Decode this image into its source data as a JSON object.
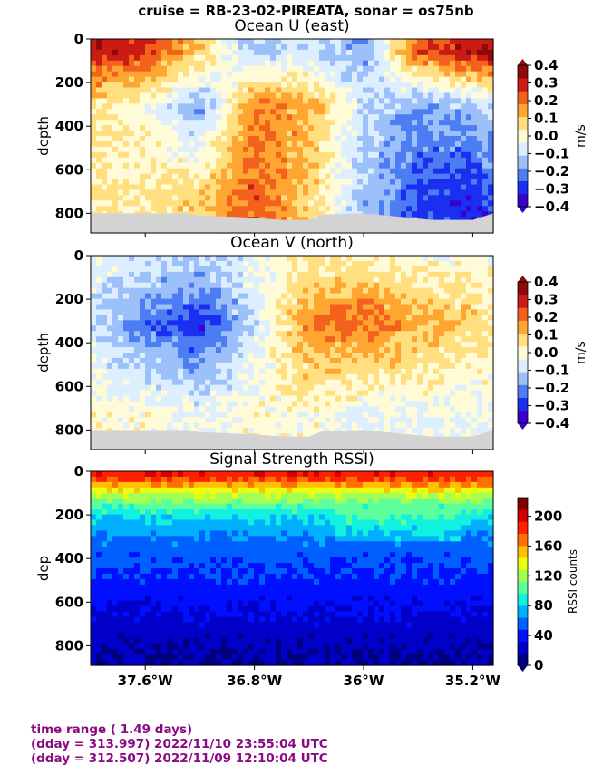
{
  "suptitle": "cruise = RB-23-02-PIREATA,  sonar = os75nb",
  "footer": {
    "line1": "time range ( 1.49 days)",
    "line2": "(dday = 313.997) 2022/11/10 23:55:04 UTC",
    "line3": "(dday = 312.507) 2022/11/09 12:10:04 UTC"
  },
  "colors": {
    "no_data_gray": "#d3d3d3",
    "footer_purple": "#8a0a84",
    "u_v_palette": [
      "#3a00cc",
      "#1b2ff0",
      "#4c7df2",
      "#9cc0fa",
      "#ddefff",
      "#fffbd6",
      "#ffdf80",
      "#ffa632",
      "#f2621c",
      "#cc1a14",
      "#8c0a0a"
    ],
    "rssi_palette": [
      "#00007f",
      "#0000c8",
      "#0010ff",
      "#0060ff",
      "#00b0ff",
      "#12f0e0",
      "#5cff9a",
      "#a4ff52",
      "#eaff10",
      "#ffc000",
      "#ff7000",
      "#ff2000",
      "#d00000",
      "#800000"
    ]
  },
  "chart_data": [
    {
      "type": "heatmap",
      "title": "Ocean U (east)",
      "xlabel": "",
      "ylabel": "depth",
      "x_tick_labels": [
        "37.6°W",
        "36.8°W",
        "36°W",
        "35.2°W"
      ],
      "x_ticks": [
        -37.6,
        -36.8,
        -36.0,
        -35.2
      ],
      "xlim": [
        -38.0,
        -35.05
      ],
      "y_tick_labels": [
        "0",
        "200",
        "400",
        "600",
        "800"
      ],
      "y_ticks": [
        0,
        200,
        400,
        600,
        800
      ],
      "ylim": [
        890,
        0
      ],
      "colorbar": {
        "label": "m/s",
        "tick_labels": [
          "0.4",
          "0.3",
          "0.2",
          "0.1",
          "0.0",
          "−0.1",
          "−0.2",
          "−0.3",
          "−0.4"
        ],
        "ticks": [
          0.4,
          0.3,
          0.2,
          0.1,
          0.0,
          -0.1,
          -0.2,
          -0.3,
          -0.4
        ],
        "range": [
          -0.4,
          0.4
        ],
        "levels": 11,
        "extend": "both"
      },
      "field_summary": {
        "longitudes": [
          -38.0,
          -37.6,
          -37.2,
          -36.8,
          -36.4,
          -36.0,
          -35.6,
          -35.2,
          -35.05
        ],
        "surface_0_100m": [
          0.35,
          0.3,
          0.1,
          -0.15,
          -0.1,
          -0.2,
          0.25,
          0.35,
          0.4
        ],
        "mid_200_500m": [
          0.05,
          0.0,
          -0.2,
          0.2,
          0.15,
          -0.1,
          -0.2,
          -0.15,
          -0.1
        ],
        "deep_600_850m": [
          0.05,
          0.05,
          0.1,
          0.25,
          0.1,
          -0.15,
          -0.3,
          -0.35,
          -0.3
        ]
      }
    },
    {
      "type": "heatmap",
      "title": "Ocean V (north)",
      "xlabel": "",
      "ylabel": "depth",
      "x_tick_labels": [
        "37.6°W",
        "36.8°W",
        "36°W",
        "35.2°W"
      ],
      "x_ticks": [
        -37.6,
        -36.8,
        -36.0,
        -35.2
      ],
      "xlim": [
        -38.0,
        -35.05
      ],
      "y_tick_labels": [
        "0",
        "200",
        "400",
        "600",
        "800"
      ],
      "y_ticks": [
        0,
        200,
        400,
        600,
        800
      ],
      "ylim": [
        890,
        0
      ],
      "colorbar": {
        "label": "m/s",
        "tick_labels": [
          "0.4",
          "0.3",
          "0.2",
          "0.1",
          "0.0",
          "−0.1",
          "−0.2",
          "−0.3",
          "−0.4"
        ],
        "ticks": [
          0.4,
          0.3,
          0.2,
          0.1,
          0.0,
          -0.1,
          -0.2,
          -0.3,
          -0.4
        ],
        "range": [
          -0.4,
          0.4
        ],
        "levels": 11,
        "extend": "both"
      },
      "field_summary": {
        "longitudes": [
          -38.0,
          -37.6,
          -37.2,
          -36.8,
          -36.4,
          -36.0,
          -35.6,
          -35.2,
          -35.05
        ],
        "surface_0_100m": [
          -0.05,
          -0.1,
          -0.15,
          -0.05,
          0.05,
          0.05,
          0.0,
          0.0,
          0.0
        ],
        "mid_150_350m": [
          -0.1,
          -0.25,
          -0.35,
          -0.1,
          0.2,
          0.25,
          0.15,
          0.1,
          0.05
        ],
        "deep_500_850m": [
          0.0,
          0.0,
          -0.05,
          0.0,
          0.0,
          -0.05,
          -0.05,
          -0.05,
          -0.05
        ]
      }
    },
    {
      "type": "heatmap",
      "title": "Signal Strength RSSI)",
      "xlabel": "",
      "ylabel": "dep",
      "x_tick_labels": [
        "37.6°W",
        "36.8°W",
        "36°W",
        "35.2°W"
      ],
      "x_ticks": [
        -37.6,
        -36.8,
        -36.0,
        -35.2
      ],
      "xlim": [
        -38.0,
        -35.05
      ],
      "y_tick_labels": [
        "0",
        "200",
        "400",
        "600",
        "800"
      ],
      "y_ticks": [
        0,
        200,
        400,
        600,
        800
      ],
      "ylim": [
        890,
        0
      ],
      "colorbar": {
        "label": "RSSI counts",
        "tick_labels": [
          "200",
          "160",
          "120",
          "80",
          "40",
          "0"
        ],
        "ticks": [
          200,
          160,
          120,
          80,
          40,
          0
        ],
        "range": [
          0,
          225
        ],
        "levels": 14,
        "extend": "min"
      },
      "field_summary": {
        "depths": [
          20,
          60,
          100,
          150,
          200,
          300,
          400,
          500,
          600,
          700,
          850
        ],
        "rssi": [
          190,
          160,
          130,
          105,
          85,
          62,
          52,
          44,
          36,
          26,
          15
        ]
      }
    }
  ]
}
